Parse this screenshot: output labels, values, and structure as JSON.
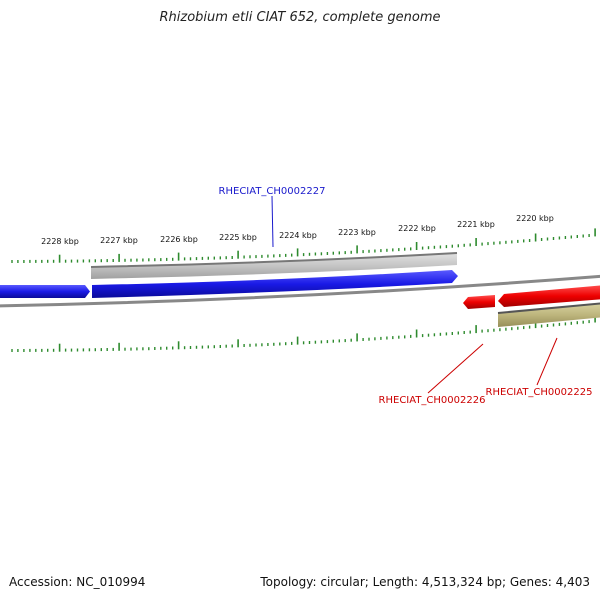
{
  "title": "Rhizobium etli CIAT 652, complete genome",
  "footer": {
    "accession": "Accession: NC_010994",
    "summary": "Topology: circular; Length: 4,513,324 bp; Genes: 4,403"
  },
  "scale_labels": [
    "2228 kbp",
    "2227 kbp",
    "2226 kbp",
    "2225 kbp",
    "2224 kbp",
    "2223 kbp",
    "2222 kbp",
    "2221 kbp",
    "2220 kbp"
  ],
  "genes": [
    {
      "locus_tag": "RHECIAT_CH0002227",
      "strand": "forward",
      "color": "#1a1acc"
    },
    {
      "locus_tag": "RHECIAT_CH0002226",
      "strand": "reverse",
      "color": "#cc0000"
    },
    {
      "locus_tag": "RHECIAT_CH0002225",
      "strand": "reverse",
      "color": "#cc0000"
    }
  ],
  "colors": {
    "forward_cds": "#1a1acc",
    "reverse_cds": "#dd0000",
    "forward_feature": "#bbbbbb",
    "reverse_feature": "#b5ad72",
    "backbone": "#888888",
    "ticks": "#2e8b2e",
    "label_forward": "#1a1acc",
    "label_reverse": "#cc0000"
  }
}
